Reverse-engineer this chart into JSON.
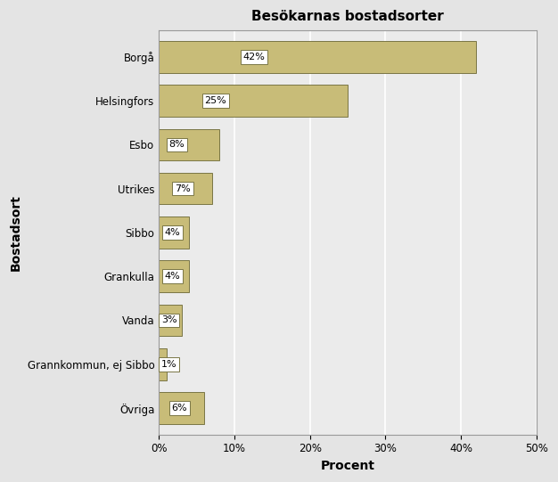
{
  "title": "Besökarnas bostadsorter",
  "categories": [
    "Borgå",
    "Helsingfors",
    "Esbo",
    "Utrikes",
    "Sibbo",
    "Grankulla",
    "Vanda",
    "Grannkommun, ej Sibbo",
    "Övriga"
  ],
  "values": [
    42,
    25,
    8,
    7,
    4,
    4,
    3,
    1,
    6
  ],
  "bar_color": "#C8BC78",
  "bar_edge_color": "#7A7645",
  "label_color": "#000000",
  "xlabel": "Procent",
  "ylabel": "Bostadsort",
  "xlim": [
    0,
    50
  ],
  "xticks": [
    0,
    10,
    20,
    30,
    40,
    50
  ],
  "background_color": "#E4E4E4",
  "plot_background_color": "#EBEBEB",
  "grid_color": "#FFFFFF",
  "title_fontsize": 11,
  "axis_label_fontsize": 10,
  "tick_fontsize": 8.5,
  "bar_label_fontsize": 8.0,
  "bar_height": 0.72
}
